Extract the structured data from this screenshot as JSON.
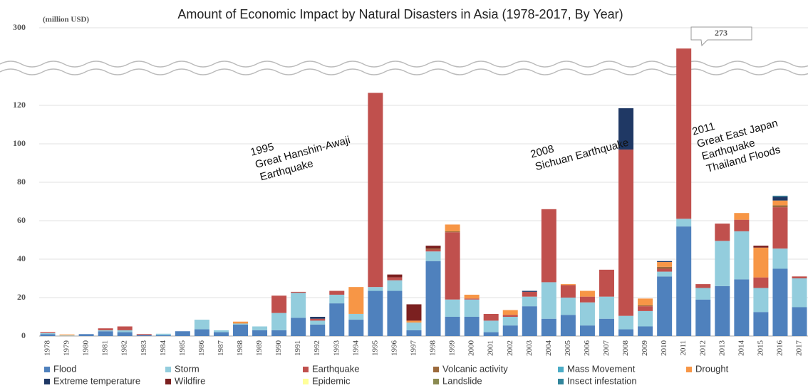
{
  "chart_data": {
    "type": "stacked_bar",
    "title": "Amount of Economic Impact by Natural Disasters in Asia (1978-2017, By Year)",
    "y_label": "(million USD)",
    "categories": [
      "1978",
      "1979",
      "1980",
      "1981",
      "1982",
      "1983",
      "1984",
      "1985",
      "1986",
      "1987",
      "1988",
      "1989",
      "1990",
      "1991",
      "1992",
      "1993",
      "1994",
      "1995",
      "1996",
      "1997",
      "1998",
      "1999",
      "2000",
      "2001",
      "2002",
      "2003",
      "2004",
      "2005",
      "2006",
      "2007",
      "2008",
      "2009",
      "2010",
      "2011",
      "2012",
      "2013",
      "2014",
      "2015",
      "2016",
      "2017"
    ],
    "series": [
      {
        "name": "Flood",
        "color": "#4f81bd",
        "values": [
          1,
          0,
          1,
          2.5,
          2,
          0.5,
          0.5,
          2.5,
          3.5,
          2,
          6,
          3,
          3,
          9.5,
          6,
          17,
          8.5,
          23.5,
          23.5,
          3,
          39,
          10,
          10,
          2,
          5.5,
          15.5,
          9,
          11,
          5.5,
          9,
          3.5,
          5,
          31,
          57,
          19,
          26,
          29.5,
          12.5,
          35,
          15
        ]
      },
      {
        "name": "Storm",
        "color": "#93cddd",
        "values": [
          0.5,
          0.3,
          0,
          0.5,
          1,
          0,
          0.7,
          0,
          5,
          1,
          0.5,
          2,
          9,
          13,
          2,
          4.5,
          3,
          2,
          5.5,
          4,
          5,
          9,
          9,
          6,
          4.5,
          5,
          19,
          9,
          12,
          11.5,
          7,
          8,
          2.5,
          4,
          6,
          23.5,
          25,
          12.5,
          10.5,
          15
        ]
      },
      {
        "name": "Earthquake",
        "color": "#c0504d",
        "values": [
          0.5,
          0,
          0,
          1,
          2,
          0.5,
          0,
          0,
          0,
          0,
          0,
          0,
          9,
          0.5,
          1,
          2,
          0,
          101,
          1.5,
          0,
          1,
          35,
          0.5,
          3.5,
          1,
          2.5,
          38,
          6.5,
          3,
          14,
          86.5,
          2.5,
          1.5,
          212,
          2,
          9,
          6,
          5.5,
          21.5,
          1
        ]
      },
      {
        "name": "Volcanic activity",
        "color": "#9c6a3c",
        "values": [
          0,
          0,
          0,
          0,
          0,
          0,
          0,
          0,
          0,
          0,
          0,
          0,
          0,
          0,
          0,
          0,
          0,
          0,
          0,
          0,
          0.5,
          0.5,
          0,
          0,
          0,
          0,
          0,
          0,
          0,
          0,
          0,
          0.5,
          1,
          0,
          0,
          0,
          0,
          0,
          1,
          0
        ]
      },
      {
        "name": "Mass Movement",
        "color": "#4bacc6",
        "values": [
          0,
          0,
          0,
          0,
          0,
          0,
          0,
          0,
          0,
          0,
          0,
          0,
          0,
          0,
          0,
          0,
          0,
          0,
          0,
          0,
          0,
          0,
          0,
          0,
          0,
          0,
          0,
          0,
          0,
          0,
          0,
          0,
          0,
          0,
          0,
          0,
          0,
          0,
          0,
          0
        ]
      },
      {
        "name": "Drought",
        "color": "#f79646",
        "values": [
          0,
          0.5,
          0,
          0,
          0,
          0,
          0,
          0,
          0,
          0,
          1,
          0,
          0,
          0,
          0,
          0,
          14,
          0,
          0,
          1,
          0,
          3.5,
          2,
          0,
          2.5,
          0,
          0,
          0.5,
          3,
          0,
          0,
          3.5,
          2.5,
          0,
          0,
          0,
          3.5,
          15.5,
          2.5,
          0
        ]
      },
      {
        "name": "Extreme temperature",
        "color": "#1f3864",
        "values": [
          0,
          0,
          0,
          0,
          0,
          0,
          0,
          0,
          0,
          0,
          0,
          0,
          0,
          0,
          1,
          0,
          0,
          0,
          0,
          0,
          0,
          0,
          0,
          0,
          0,
          0.5,
          0,
          0,
          0,
          0,
          21.5,
          0,
          0.5,
          0,
          0,
          0,
          0,
          0,
          2,
          0
        ]
      },
      {
        "name": "Wildfire",
        "color": "#7b2020",
        "values": [
          0,
          0,
          0,
          0,
          0,
          0,
          0,
          0,
          0,
          0,
          0,
          0,
          0,
          0,
          0,
          0,
          0,
          0,
          1.5,
          8.5,
          1.5,
          0,
          0,
          0,
          0,
          0,
          0,
          0,
          0,
          0,
          0,
          0,
          0,
          0,
          0,
          0,
          0,
          1,
          0,
          0
        ]
      },
      {
        "name": "Epidemic",
        "color": "#ffff99",
        "values": [
          0,
          0,
          0,
          0,
          0,
          0,
          0,
          0,
          0,
          0,
          0,
          0,
          0,
          0,
          0,
          0,
          0,
          0,
          0,
          0,
          0,
          0,
          0,
          0,
          0,
          0,
          0,
          0,
          0,
          0,
          0,
          0,
          0,
          0,
          0,
          0,
          0,
          0,
          0,
          0
        ]
      },
      {
        "name": "Landslide",
        "color": "#8a8a50",
        "values": [
          0,
          0,
          0,
          0,
          0,
          0,
          0,
          0,
          0,
          0,
          0,
          0,
          0,
          0,
          0,
          0,
          0,
          0,
          0,
          0,
          0,
          0,
          0,
          0,
          0,
          0,
          0,
          0,
          0,
          0,
          0,
          0,
          0,
          0,
          0,
          0,
          0,
          0,
          0,
          0
        ]
      },
      {
        "name": "Insect infestation",
        "color": "#31859b",
        "values": [
          0,
          0,
          0,
          0,
          0,
          0,
          0,
          0,
          0,
          0,
          0,
          0,
          0,
          0,
          0,
          0,
          0,
          0,
          0,
          0,
          0,
          0,
          0,
          0,
          0,
          0,
          0,
          0,
          0,
          0,
          0,
          0,
          0,
          0,
          0,
          0,
          0,
          0,
          0.5,
          0
        ]
      }
    ],
    "ylim": [
      0,
      300
    ],
    "yticks": [
      0,
      20,
      40,
      60,
      80,
      100,
      120,
      250,
      300
    ],
    "axis_break": true,
    "grid": true,
    "legend": "bottom",
    "annotations": [
      {
        "lines": [
          "1995",
          "Great Hanshin-Awaji",
          "Earthquake"
        ]
      },
      {
        "lines": [
          "2008",
          "Sichuan Earthquake"
        ]
      },
      {
        "lines": [
          "2011",
          "Great East Japan",
          "Earthquake",
          "Thailand Floods"
        ]
      },
      {
        "lines": [
          "273"
        ]
      }
    ]
  }
}
